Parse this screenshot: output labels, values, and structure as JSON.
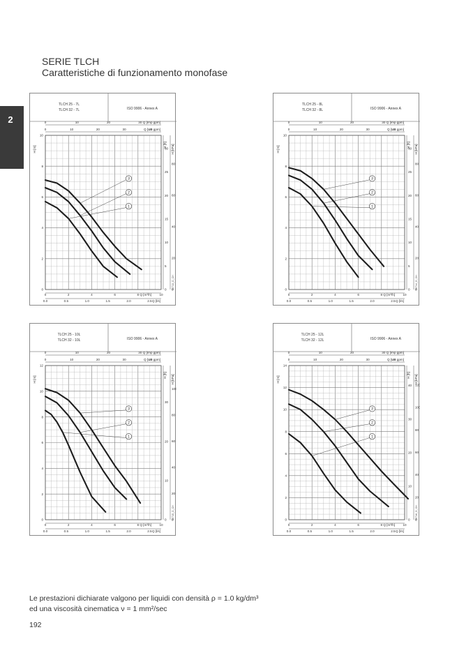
{
  "section_tab": "2",
  "header": {
    "series": "SERIE TLCH",
    "subtitle": "Caratteristiche di funzionamento monofase"
  },
  "footer": {
    "note_line1": "Le prestazioni dichiarate valgono per liquidi con densità ρ = 1.0 kg/dm³",
    "note_line2": "ed una viscosità cinematica ν = 1 mm²/sec",
    "page_number": "192"
  },
  "chart_data": [
    {
      "type": "line",
      "models": [
        "TLCH 25 - 7L",
        "TLCH 32 - 7L"
      ],
      "standard": "ISO 9906 - Annex A",
      "xlabel": "Q [m³/h]",
      "ylabel": "H [m]",
      "xlim": [
        0,
        10
      ],
      "ylim": [
        0,
        10
      ],
      "x_ticks": [
        0,
        2,
        4,
        6,
        8,
        10
      ],
      "y_ticks": [
        0,
        2,
        4,
        6,
        8,
        10
      ],
      "top_axis_1": {
        "label": "Q [Imp gpm]",
        "ticks": [
          "0",
          "10",
          "20",
          "30"
        ]
      },
      "top_axis_2": {
        "label": "Q [US gpm]",
        "ticks": [
          "0",
          "10",
          "20",
          "30",
          "40"
        ]
      },
      "bottom_axis_2": {
        "label": "Q [l/s]",
        "ticks": [
          "0.0",
          "0.5",
          "1.0",
          "1.5",
          "2.0",
          "2.5"
        ]
      },
      "right_axis_1": {
        "label": "H [ft]",
        "ticks": [
          "0",
          "5",
          "10",
          "15",
          "20",
          "25",
          "30"
        ]
      },
      "right_axis_2": {
        "label": "H [kPa]",
        "ticks": [
          "0",
          "20",
          "40",
          "60",
          "80"
        ]
      },
      "code": "02713_D_CH",
      "series": [
        {
          "name": "1",
          "x": [
            0,
            1,
            2,
            3,
            4,
            5,
            6.2
          ],
          "y": [
            5.7,
            5.3,
            4.6,
            3.6,
            2.5,
            1.5,
            0.8
          ]
        },
        {
          "name": "2",
          "x": [
            0,
            1,
            2,
            3,
            4,
            5,
            6,
            7.3
          ],
          "y": [
            6.6,
            6.3,
            5.7,
            4.8,
            3.8,
            2.7,
            1.8,
            1.0
          ]
        },
        {
          "name": "3",
          "x": [
            0,
            1,
            2,
            3,
            4,
            5,
            6,
            7,
            8.3
          ],
          "y": [
            7.1,
            6.9,
            6.4,
            5.6,
            4.7,
            3.7,
            2.8,
            2.0,
            1.3
          ]
        }
      ]
    },
    {
      "type": "line",
      "models": [
        "TLCH 25 - 8L",
        "TLCH 32 - 8L"
      ],
      "standard": "ISO 9906 - Annex A",
      "xlabel": "Q [m³/h]",
      "ylabel": "H [m]",
      "xlim": [
        0,
        10
      ],
      "ylim": [
        0,
        10
      ],
      "x_ticks": [
        0,
        2,
        4,
        6,
        8,
        10
      ],
      "y_ticks": [
        0,
        2,
        4,
        6,
        8,
        10
      ],
      "top_axis_1": {
        "label": "Q [Imp gpm]",
        "ticks": [
          "0",
          "10",
          "20",
          "30"
        ]
      },
      "top_axis_2": {
        "label": "Q [US gpm]",
        "ticks": [
          "0",
          "10",
          "20",
          "30",
          "40"
        ]
      },
      "bottom_axis_2": {
        "label": "Q [l/s]",
        "ticks": [
          "0.0",
          "0.5",
          "1.0",
          "1.5",
          "2.0",
          "2.5"
        ]
      },
      "right_axis_1": {
        "label": "H [ft]",
        "ticks": [
          "0",
          "5",
          "10",
          "15",
          "20",
          "25",
          "30"
        ]
      },
      "right_axis_2": {
        "label": "H [kPa]",
        "ticks": [
          "0",
          "20",
          "40",
          "60",
          "80"
        ]
      },
      "code": "02714_D_CH",
      "series": [
        {
          "name": "1",
          "x": [
            0,
            1,
            2,
            3,
            4,
            5,
            6
          ],
          "y": [
            6.6,
            6.2,
            5.4,
            4.3,
            3.0,
            1.8,
            0.8
          ]
        },
        {
          "name": "2",
          "x": [
            0,
            1,
            2,
            3,
            4,
            5,
            6,
            7.2
          ],
          "y": [
            7.4,
            7.1,
            6.5,
            5.6,
            4.5,
            3.3,
            2.2,
            1.3
          ]
        },
        {
          "name": "3",
          "x": [
            0,
            1,
            2,
            3,
            4,
            5,
            6,
            7,
            8.2
          ],
          "y": [
            7.9,
            7.7,
            7.2,
            6.5,
            5.6,
            4.6,
            3.6,
            2.6,
            1.5
          ]
        }
      ]
    },
    {
      "type": "line",
      "models": [
        "TLCH 25 - 10L",
        "TLCH 32 - 10L"
      ],
      "standard": "ISO 9906 - Annex A",
      "xlabel": "Q [m³/h]",
      "ylabel": "H [m]",
      "xlim": [
        0,
        10
      ],
      "ylim": [
        0,
        12
      ],
      "x_ticks": [
        0,
        2,
        4,
        6,
        8,
        10
      ],
      "y_ticks": [
        0,
        2,
        4,
        6,
        8,
        10,
        12
      ],
      "top_axis_1": {
        "label": "Q [Imp gpm]",
        "ticks": [
          "0",
          "10",
          "20",
          "30"
        ]
      },
      "top_axis_2": {
        "label": "Q [US gpm]",
        "ticks": [
          "0",
          "10",
          "20",
          "30",
          "40"
        ]
      },
      "bottom_axis_2": {
        "label": "Q [l/s]",
        "ticks": [
          "0.0",
          "0.5",
          "1.0",
          "1.5",
          "2.0",
          "2.5"
        ]
      },
      "right_axis_1": {
        "label": "H [ft]",
        "ticks": [
          "0",
          "10",
          "20",
          "30"
        ]
      },
      "right_axis_2": {
        "label": "H [kPa]",
        "ticks": [
          "0",
          "20",
          "40",
          "60",
          "80",
          "100"
        ]
      },
      "code": "02715_D_CH",
      "series": [
        {
          "name": "1",
          "x": [
            0,
            0.5,
            1,
            1.5,
            2,
            3,
            4,
            5.2
          ],
          "y": [
            8.5,
            8.2,
            7.6,
            6.8,
            5.8,
            3.7,
            1.8,
            0.6
          ]
        },
        {
          "name": "2",
          "x": [
            0,
            1,
            2,
            3,
            4,
            5,
            6,
            7
          ],
          "y": [
            9.6,
            9.1,
            8.1,
            6.8,
            5.3,
            3.8,
            2.5,
            1.6
          ]
        },
        {
          "name": "3",
          "x": [
            0,
            1,
            2,
            3,
            4,
            5,
            6,
            7,
            8.2
          ],
          "y": [
            10.2,
            9.9,
            9.3,
            8.3,
            7.0,
            5.6,
            4.2,
            3.0,
            1.3
          ]
        }
      ]
    },
    {
      "type": "line",
      "models": [
        "TLCH 25 - 12L",
        "TLCH 32 - 12L"
      ],
      "standard": "ISO 9906 - Annex A",
      "xlabel": "Q [m³/h]",
      "ylabel": "H [m]",
      "xlim": [
        0,
        10
      ],
      "ylim": [
        0,
        14
      ],
      "x_ticks": [
        0,
        2,
        4,
        6,
        8,
        10
      ],
      "y_ticks": [
        0,
        2,
        4,
        6,
        8,
        10,
        12,
        14
      ],
      "top_axis_1": {
        "label": "Q [Imp gpm]",
        "ticks": [
          "0",
          "10",
          "20",
          "30"
        ]
      },
      "top_axis_2": {
        "label": "Q [US gpm]",
        "ticks": [
          "0",
          "10",
          "20",
          "30",
          "40"
        ]
      },
      "bottom_axis_2": {
        "label": "Q [l/s]",
        "ticks": [
          "0.0",
          "0.5",
          "1.0",
          "1.5",
          "2.0",
          "2.5"
        ]
      },
      "right_axis_1": {
        "label": "H [ft]",
        "ticks": [
          "0",
          "10",
          "20",
          "30",
          "40"
        ]
      },
      "right_axis_2": {
        "label": "H [kPa]",
        "ticks": [
          "0",
          "20",
          "40",
          "60",
          "80",
          "100",
          "120"
        ]
      },
      "code": "02716_D_CH",
      "series": [
        {
          "name": "1",
          "x": [
            0,
            1,
            2,
            3,
            4,
            5,
            6.2
          ],
          "y": [
            7.8,
            7.0,
            5.8,
            4.2,
            2.7,
            1.6,
            0.6
          ]
        },
        {
          "name": "2",
          "x": [
            0,
            1,
            2,
            3,
            4,
            5,
            6,
            7,
            8.6
          ],
          "y": [
            10.5,
            10.0,
            9.1,
            8.0,
            6.7,
            5.2,
            3.7,
            2.6,
            1.2
          ]
        },
        {
          "name": "3",
          "x": [
            0,
            1,
            2,
            3,
            4,
            5,
            6,
            7,
            8,
            9,
            10.3
          ],
          "y": [
            11.8,
            11.4,
            10.8,
            10.0,
            9.1,
            8.0,
            6.8,
            5.6,
            4.4,
            3.3,
            1.9
          ]
        }
      ]
    }
  ]
}
